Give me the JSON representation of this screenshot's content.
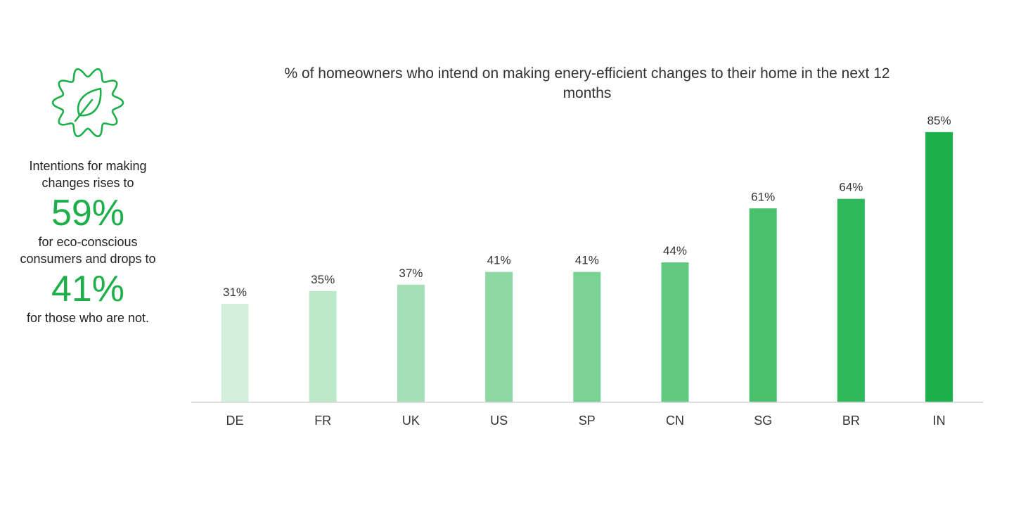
{
  "side_panel": {
    "icon": "leaf-gear-icon",
    "text_1": "Intentions for making changes rises to",
    "big_1": "59%",
    "text_2": "for eco-conscious consumers and drops to",
    "big_2": "41%",
    "text_3": "for those who are not."
  },
  "colors": {
    "accent": "#1db04a",
    "bars": [
      "#d3f0dc",
      "#bbe8c9",
      "#a4e0b6",
      "#8dd8a3",
      "#79d193",
      "#61c980",
      "#48c06c",
      "#30b95a",
      "#1db04a"
    ]
  },
  "chart_data": {
    "type": "bar",
    "title": "% of homeowners who intend on making enery-efficient changes to their home in the next 12 months",
    "categories": [
      "DE",
      "FR",
      "UK",
      "US",
      "SP",
      "CN",
      "SG",
      "BR",
      "IN"
    ],
    "values": [
      31,
      35,
      37,
      41,
      41,
      44,
      61,
      64,
      85
    ],
    "value_labels": [
      "31%",
      "35%",
      "37%",
      "41%",
      "41%",
      "44%",
      "61%",
      "64%",
      "85%"
    ],
    "xlabel": "",
    "ylabel": "",
    "ylim": [
      0,
      100
    ],
    "grid": false,
    "legend": "none"
  }
}
